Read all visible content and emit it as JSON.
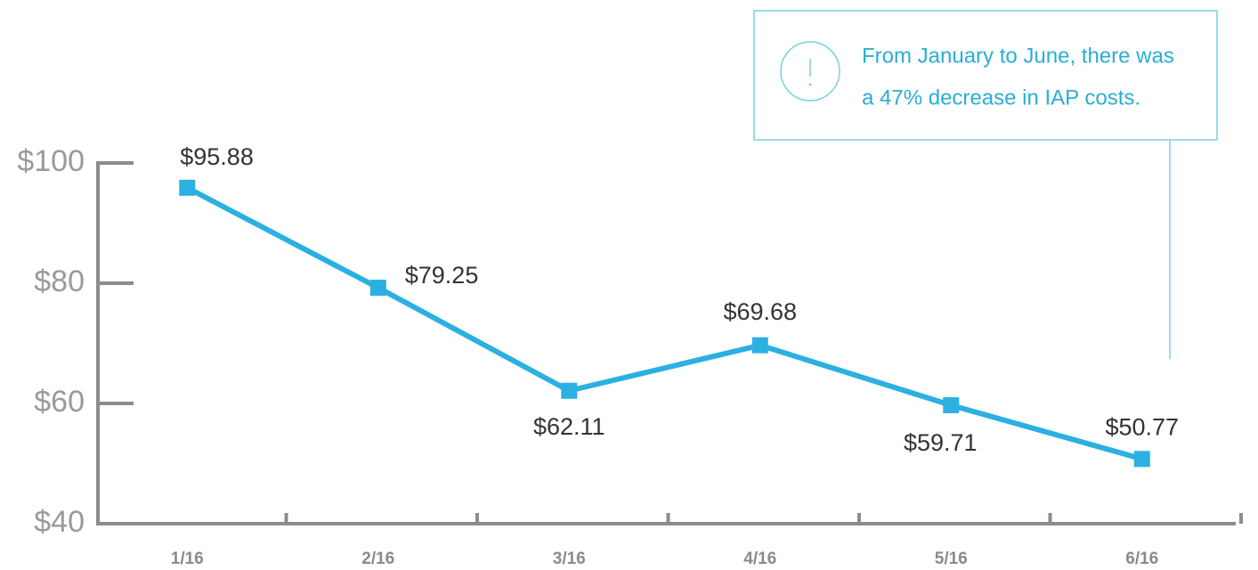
{
  "chart_data": {
    "type": "line",
    "categories": [
      "1/16",
      "2/16",
      "3/16",
      "4/16",
      "5/16",
      "6/16"
    ],
    "values": [
      95.88,
      79.25,
      62.11,
      69.68,
      59.71,
      50.77
    ],
    "value_labels": [
      "$95.88",
      "$79.25",
      "$62.11",
      "$69.68",
      "$59.71",
      "$50.77"
    ],
    "color": "#2bb0e1",
    "ylim": [
      40,
      100
    ],
    "yticks": [
      {
        "value": 40,
        "label": "$40"
      },
      {
        "value": 60,
        "label": "$60"
      },
      {
        "value": 80,
        "label": "$80"
      },
      {
        "value": 100,
        "label": "$100"
      }
    ],
    "annotation": [
      "From January to June, there was",
      "a 47% decrease in IAP costs."
    ]
  }
}
